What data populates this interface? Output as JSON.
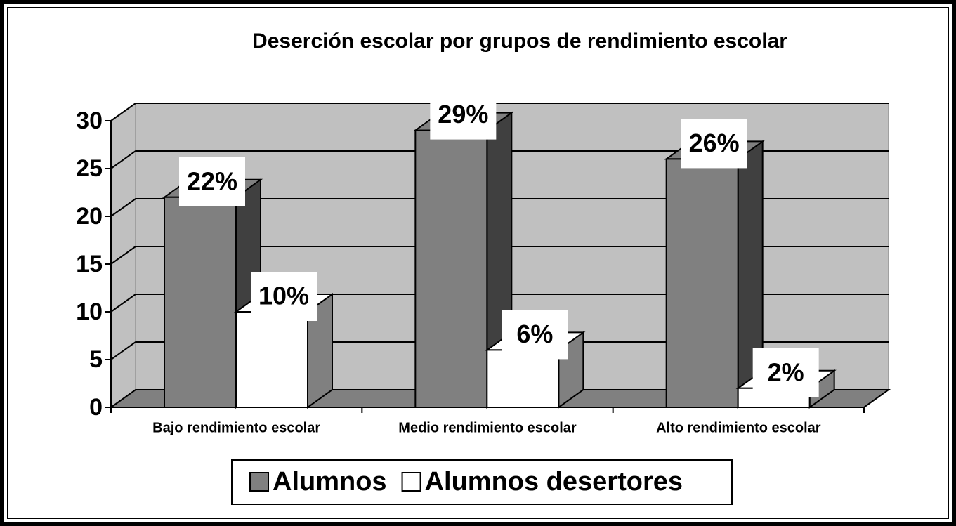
{
  "chart_data": {
    "type": "bar3d",
    "title": "Deserción escolar por grupos de rendimiento escolar",
    "categories": [
      "Bajo rendimiento escolar",
      "Medio rendimiento escolar",
      "Alto rendimiento escolar"
    ],
    "series": [
      {
        "name": "Alumnos",
        "color": "#808080",
        "values": [
          22,
          29,
          26
        ],
        "value_labels": [
          "22%",
          "29%",
          "26%"
        ]
      },
      {
        "name": "Alumnos desertores",
        "color": "#ffffff",
        "values": [
          10,
          6,
          2
        ],
        "value_labels": [
          "10%",
          "6%",
          "2%"
        ]
      }
    ],
    "ylim": [
      0,
      30
    ],
    "yticks": [
      0,
      5,
      10,
      15,
      20,
      25,
      30
    ],
    "grid": true,
    "legend": "bottom"
  }
}
